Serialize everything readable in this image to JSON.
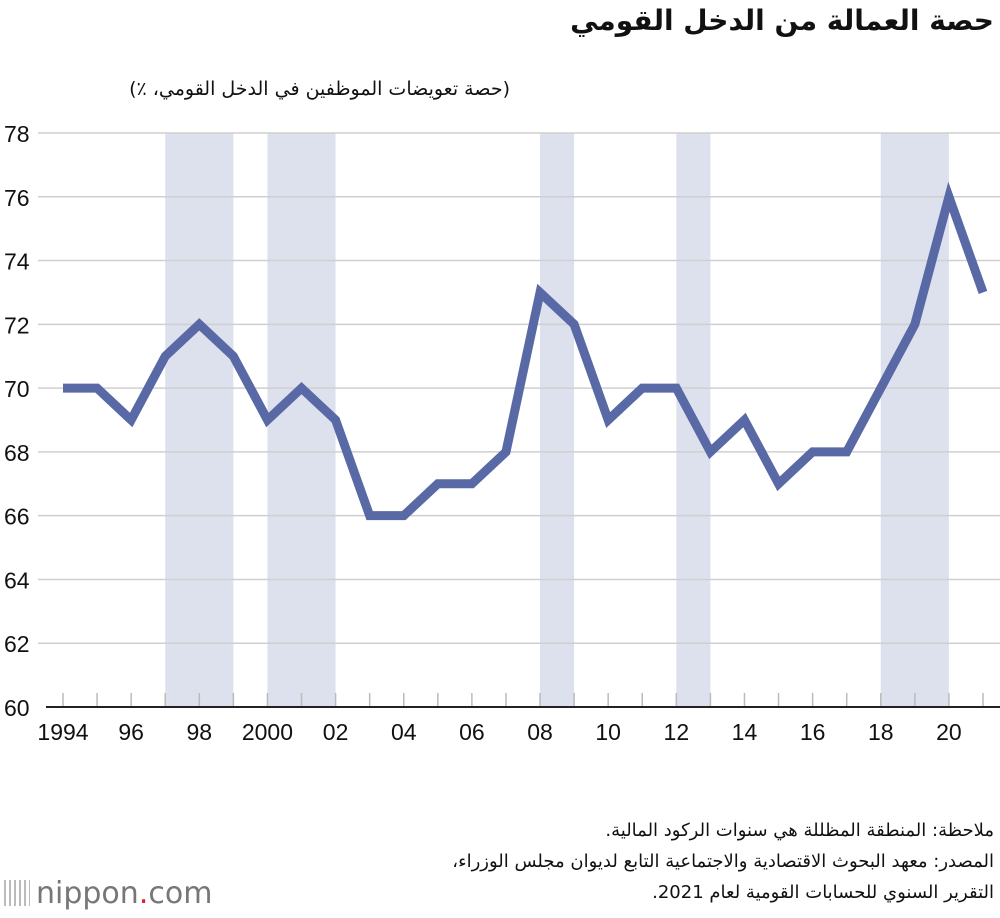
{
  "title": "حصة العمالة من الدخل القومي",
  "notes": {
    "note": "ملاحظة: المنطقة المظللة هي سنوات الركود المالية.",
    "source_line1": "المصدر: معهد البحوث الاقتصادية والاجتماعية التابع لديوان مجلس الوزراء،",
    "source_line2": "التقرير السنوي للحسابات القومية لعام 2021."
  },
  "logo": {
    "text": "nippon",
    "dot": ".",
    "suffix": "com"
  },
  "chart_data": {
    "type": "line",
    "title": "حصة العمالة من الدخل القومي",
    "ylabel": "(حصة تعويضات الموظفين في الدخل القومي، ٪)",
    "xlabel": "",
    "x": [
      1994,
      1995,
      1996,
      1997,
      1998,
      1999,
      2000,
      2001,
      2002,
      2003,
      2004,
      2005,
      2006,
      2007,
      2008,
      2009,
      2010,
      2011,
      2012,
      2013,
      2014,
      2015,
      2016,
      2017,
      2018,
      2019,
      2020,
      2021
    ],
    "series": [
      {
        "values": [
          70,
          70,
          69,
          71,
          72,
          71,
          69,
          70,
          69,
          66,
          66,
          67,
          67,
          68,
          73,
          72,
          69,
          70,
          70,
          68,
          69,
          67,
          68,
          68,
          70,
          72,
          76,
          73
        ],
        "color": "#5869a6"
      }
    ],
    "ylim": [
      60,
      78
    ],
    "yticks": [
      "60",
      "62",
      "64",
      "66",
      "68",
      "70",
      "72",
      "74",
      "76",
      "78"
    ],
    "xtick_labels": [
      {
        "year": 1994,
        "label": "1994"
      },
      {
        "year": 1996,
        "label": "96"
      },
      {
        "year": 1998,
        "label": "98"
      },
      {
        "year": 2000,
        "label": "2000"
      },
      {
        "year": 2002,
        "label": "02"
      },
      {
        "year": 2004,
        "label": "04"
      },
      {
        "year": 2006,
        "label": "06"
      },
      {
        "year": 2008,
        "label": "08"
      },
      {
        "year": 2010,
        "label": "10"
      },
      {
        "year": 2012,
        "label": "12"
      },
      {
        "year": 2014,
        "label": "14"
      },
      {
        "year": 2016,
        "label": "16"
      },
      {
        "year": 2018,
        "label": "18"
      },
      {
        "year": 2020,
        "label": "20"
      }
    ],
    "recession_shading": [
      [
        1997,
        1999
      ],
      [
        2000,
        2002
      ],
      [
        2008,
        2009
      ],
      [
        2012,
        2013
      ],
      [
        2018,
        2020
      ]
    ],
    "shading_color": "#dde1ed",
    "grid": true
  }
}
